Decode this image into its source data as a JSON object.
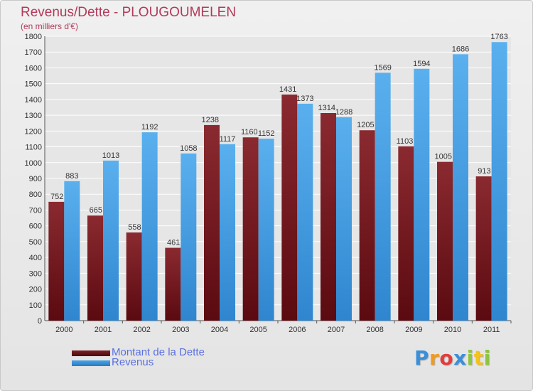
{
  "title": "Revenus/Dette - PLOUGOUMELEN",
  "subtitle": "(en milliers d'€)",
  "colors": {
    "dette": "#7a1f24",
    "revenus": "#4aa3e6",
    "text": "#b23a5a",
    "legend_text": "#5a6fe0",
    "grid": "#ffffff"
  },
  "chart_data": {
    "type": "bar",
    "categories": [
      "2000",
      "2001",
      "2002",
      "2003",
      "2004",
      "2005",
      "2006",
      "2007",
      "2008",
      "2009",
      "2010",
      "2011"
    ],
    "series": [
      {
        "name": "Montant de la Dette",
        "values": [
          752,
          665,
          558,
          461,
          1238,
          1160,
          1431,
          1314,
          1205,
          1103,
          1005,
          913
        ]
      },
      {
        "name": "Revenus",
        "values": [
          883,
          1013,
          1192,
          1058,
          1117,
          1152,
          1373,
          1288,
          1569,
          1594,
          1686,
          1763
        ]
      }
    ],
    "ylim": [
      0,
      1800
    ],
    "yticks": [
      0,
      100,
      200,
      300,
      400,
      500,
      600,
      700,
      800,
      900,
      1000,
      1100,
      1200,
      1300,
      1400,
      1500,
      1600,
      1700,
      1800
    ],
    "grid": true,
    "legend_position": "bottom-left"
  },
  "legend": [
    {
      "label": "Montant de la Dette"
    },
    {
      "label": "Revenus"
    }
  ],
  "logo": {
    "letters": [
      {
        "ch": "P",
        "color": "#3a8fd8"
      },
      {
        "ch": "r",
        "color": "#f29a1f"
      },
      {
        "ch": "o",
        "color": "#e23c3c"
      },
      {
        "ch": "x",
        "color": "#3a8fd8"
      },
      {
        "ch": "i",
        "color": "#8cc63f"
      },
      {
        "ch": "t",
        "color": "#f2c21f"
      },
      {
        "ch": "i",
        "color": "#8cc63f"
      }
    ]
  }
}
